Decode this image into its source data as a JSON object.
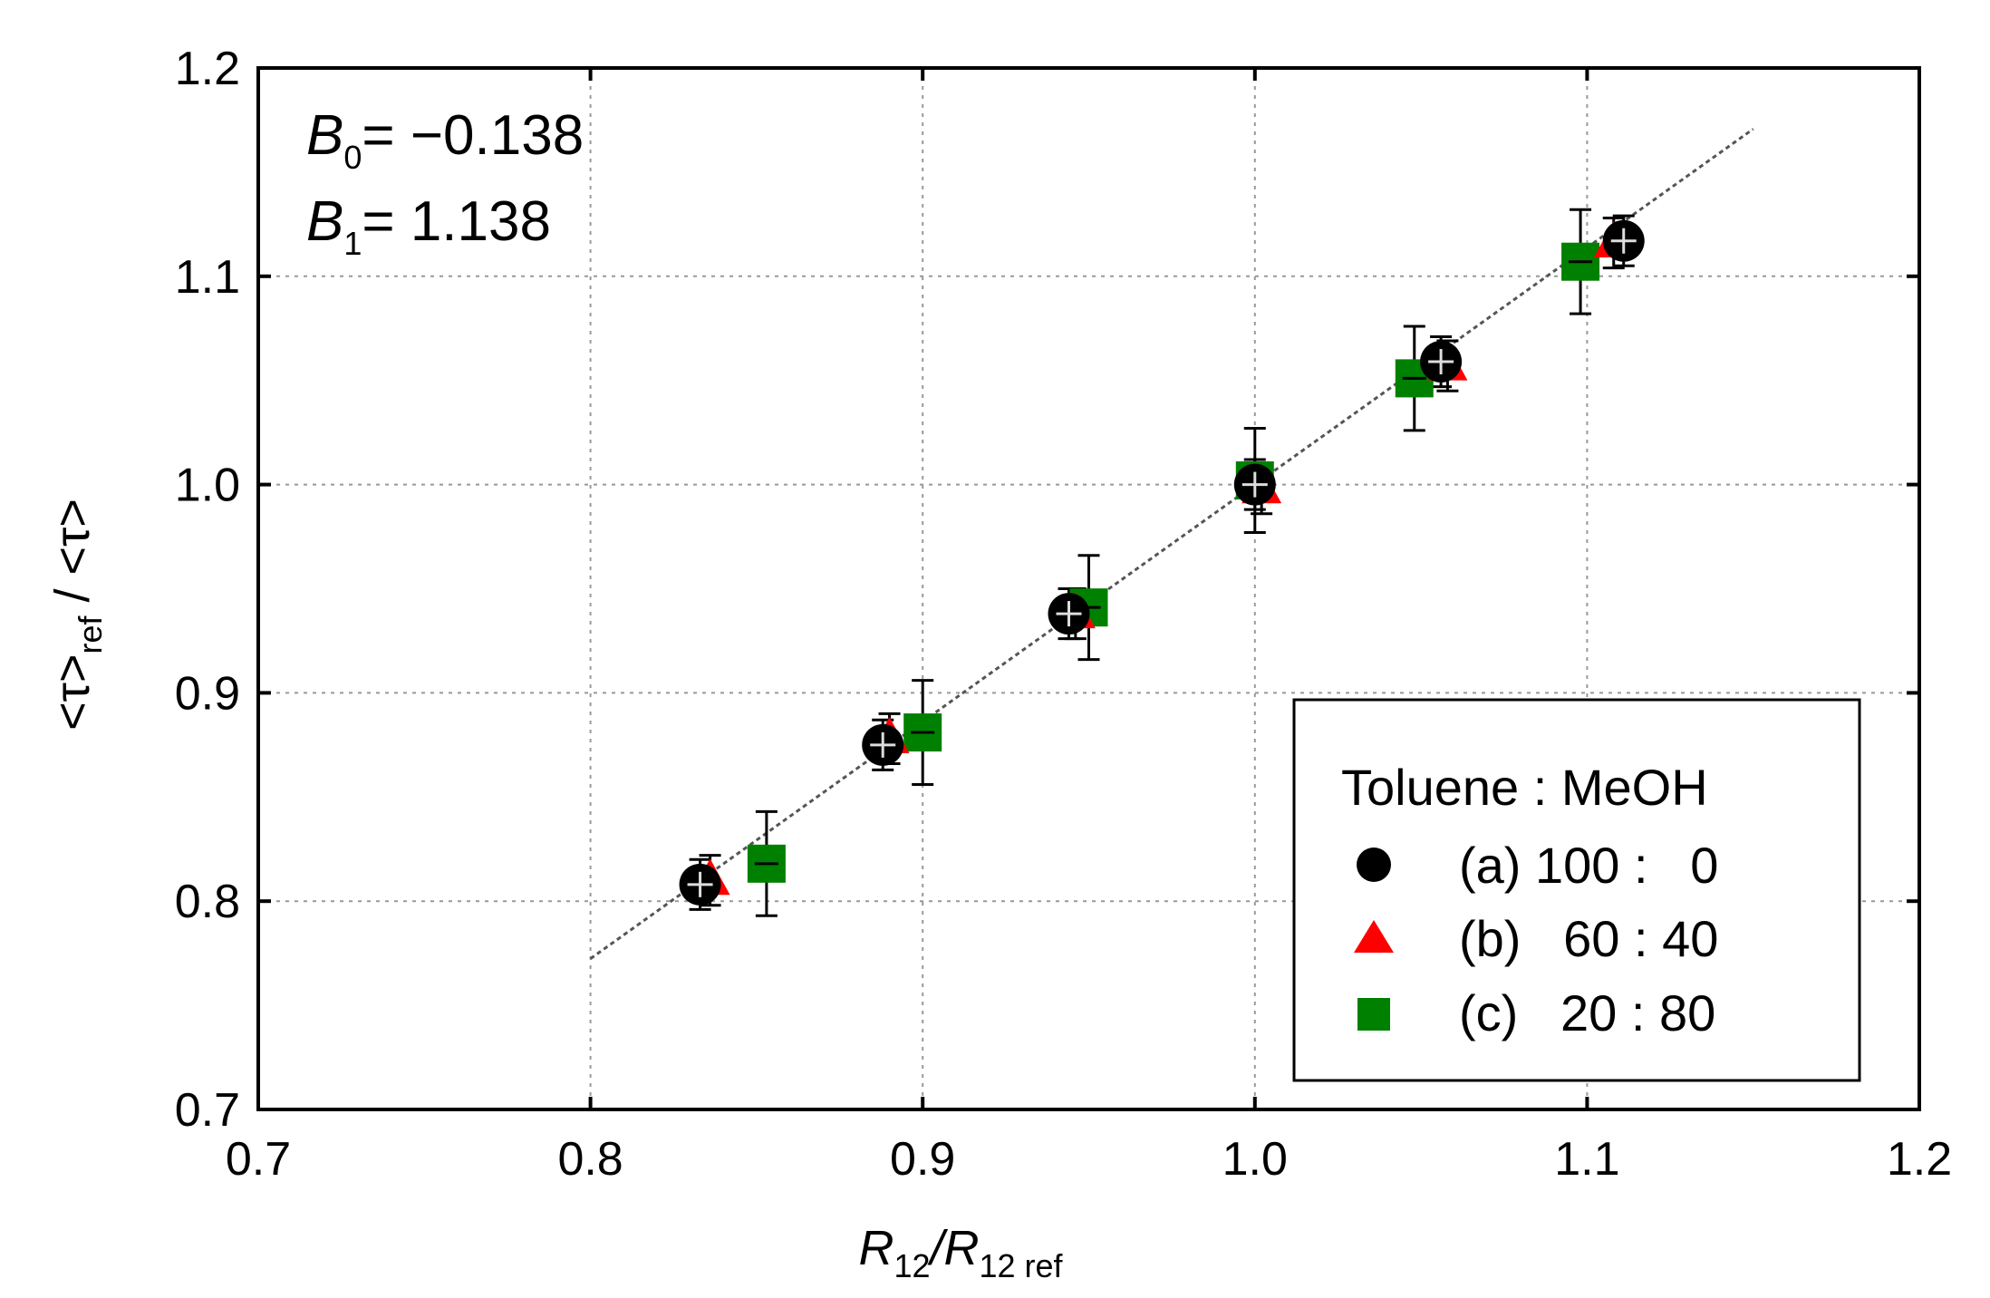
{
  "chart_data": {
    "type": "scatter",
    "title": "",
    "xlabel": {
      "main": "R",
      "sub1": "12",
      "slash": "/R",
      "sub2": "12 ref"
    },
    "ylabel": {
      "part1": "<τ>",
      "sub": "ref",
      "part2": " / <τ>"
    },
    "xlim": [
      0.7,
      1.2
    ],
    "ylim": [
      0.7,
      1.2
    ],
    "x_ticks": [
      "0.7",
      "0.8",
      "0.9",
      "1.0",
      "1.1",
      "1.2"
    ],
    "y_ticks": [
      "0.7",
      "0.8",
      "0.9",
      "1.0",
      "1.1",
      "1.2"
    ],
    "x_tick_values": [
      0.7,
      0.8,
      0.9,
      1.0,
      1.1,
      1.2
    ],
    "y_tick_values": [
      0.7,
      0.8,
      0.9,
      1.0,
      1.1,
      1.2
    ],
    "grid": true,
    "annotations": {
      "b0": {
        "var": "B",
        "sub": "0",
        "text": "= −0.138"
      },
      "b1": {
        "var": "B",
        "sub": "1",
        "text": "=   1.138"
      }
    },
    "fit_line": {
      "intercept": -0.138,
      "slope": 1.138,
      "x_range": [
        0.8,
        1.15
      ]
    },
    "legend": {
      "title": "Toluene : MeOH",
      "position": "lower-right",
      "entries": [
        {
          "label": "(a) 100 :   0"
        },
        {
          "label": "(b)   60 : 40"
        },
        {
          "label": "(c)   20 : 80"
        }
      ]
    },
    "series": [
      {
        "name": "(a) 100 : 0",
        "marker": "circle",
        "color": "#000000",
        "points": [
          {
            "x": 0.833,
            "y": 0.808,
            "err": 0.012
          },
          {
            "x": 0.888,
            "y": 0.875,
            "err": 0.012
          },
          {
            "x": 0.944,
            "y": 0.938,
            "err": 0.012
          },
          {
            "x": 1.0,
            "y": 1.0,
            "err": 0.012
          },
          {
            "x": 1.056,
            "y": 1.059,
            "err": 0.012
          },
          {
            "x": 1.111,
            "y": 1.117,
            "err": 0.012
          }
        ]
      },
      {
        "name": "(b) 60 : 40",
        "marker": "triangle",
        "color": "#ff0000",
        "points": [
          {
            "x": 0.836,
            "y": 0.81,
            "err": 0.012
          },
          {
            "x": 0.89,
            "y": 0.878,
            "err": 0.012
          },
          {
            "x": 0.946,
            "y": 0.938,
            "err": 0.012
          },
          {
            "x": 1.002,
            "y": 0.998,
            "err": 0.012
          },
          {
            "x": 1.058,
            "y": 1.057,
            "err": 0.012
          },
          {
            "x": 1.108,
            "y": 1.116,
            "err": 0.012
          }
        ]
      },
      {
        "name": "(c) 20 : 80",
        "marker": "square",
        "color": "#008000",
        "points": [
          {
            "x": 0.853,
            "y": 0.818,
            "err": 0.025
          },
          {
            "x": 0.9,
            "y": 0.881,
            "err": 0.025
          },
          {
            "x": 0.95,
            "y": 0.941,
            "err": 0.025
          },
          {
            "x": 1.0,
            "y": 1.002,
            "err": 0.025
          },
          {
            "x": 1.048,
            "y": 1.051,
            "err": 0.025
          },
          {
            "x": 1.098,
            "y": 1.107,
            "err": 0.025
          }
        ]
      }
    ]
  }
}
